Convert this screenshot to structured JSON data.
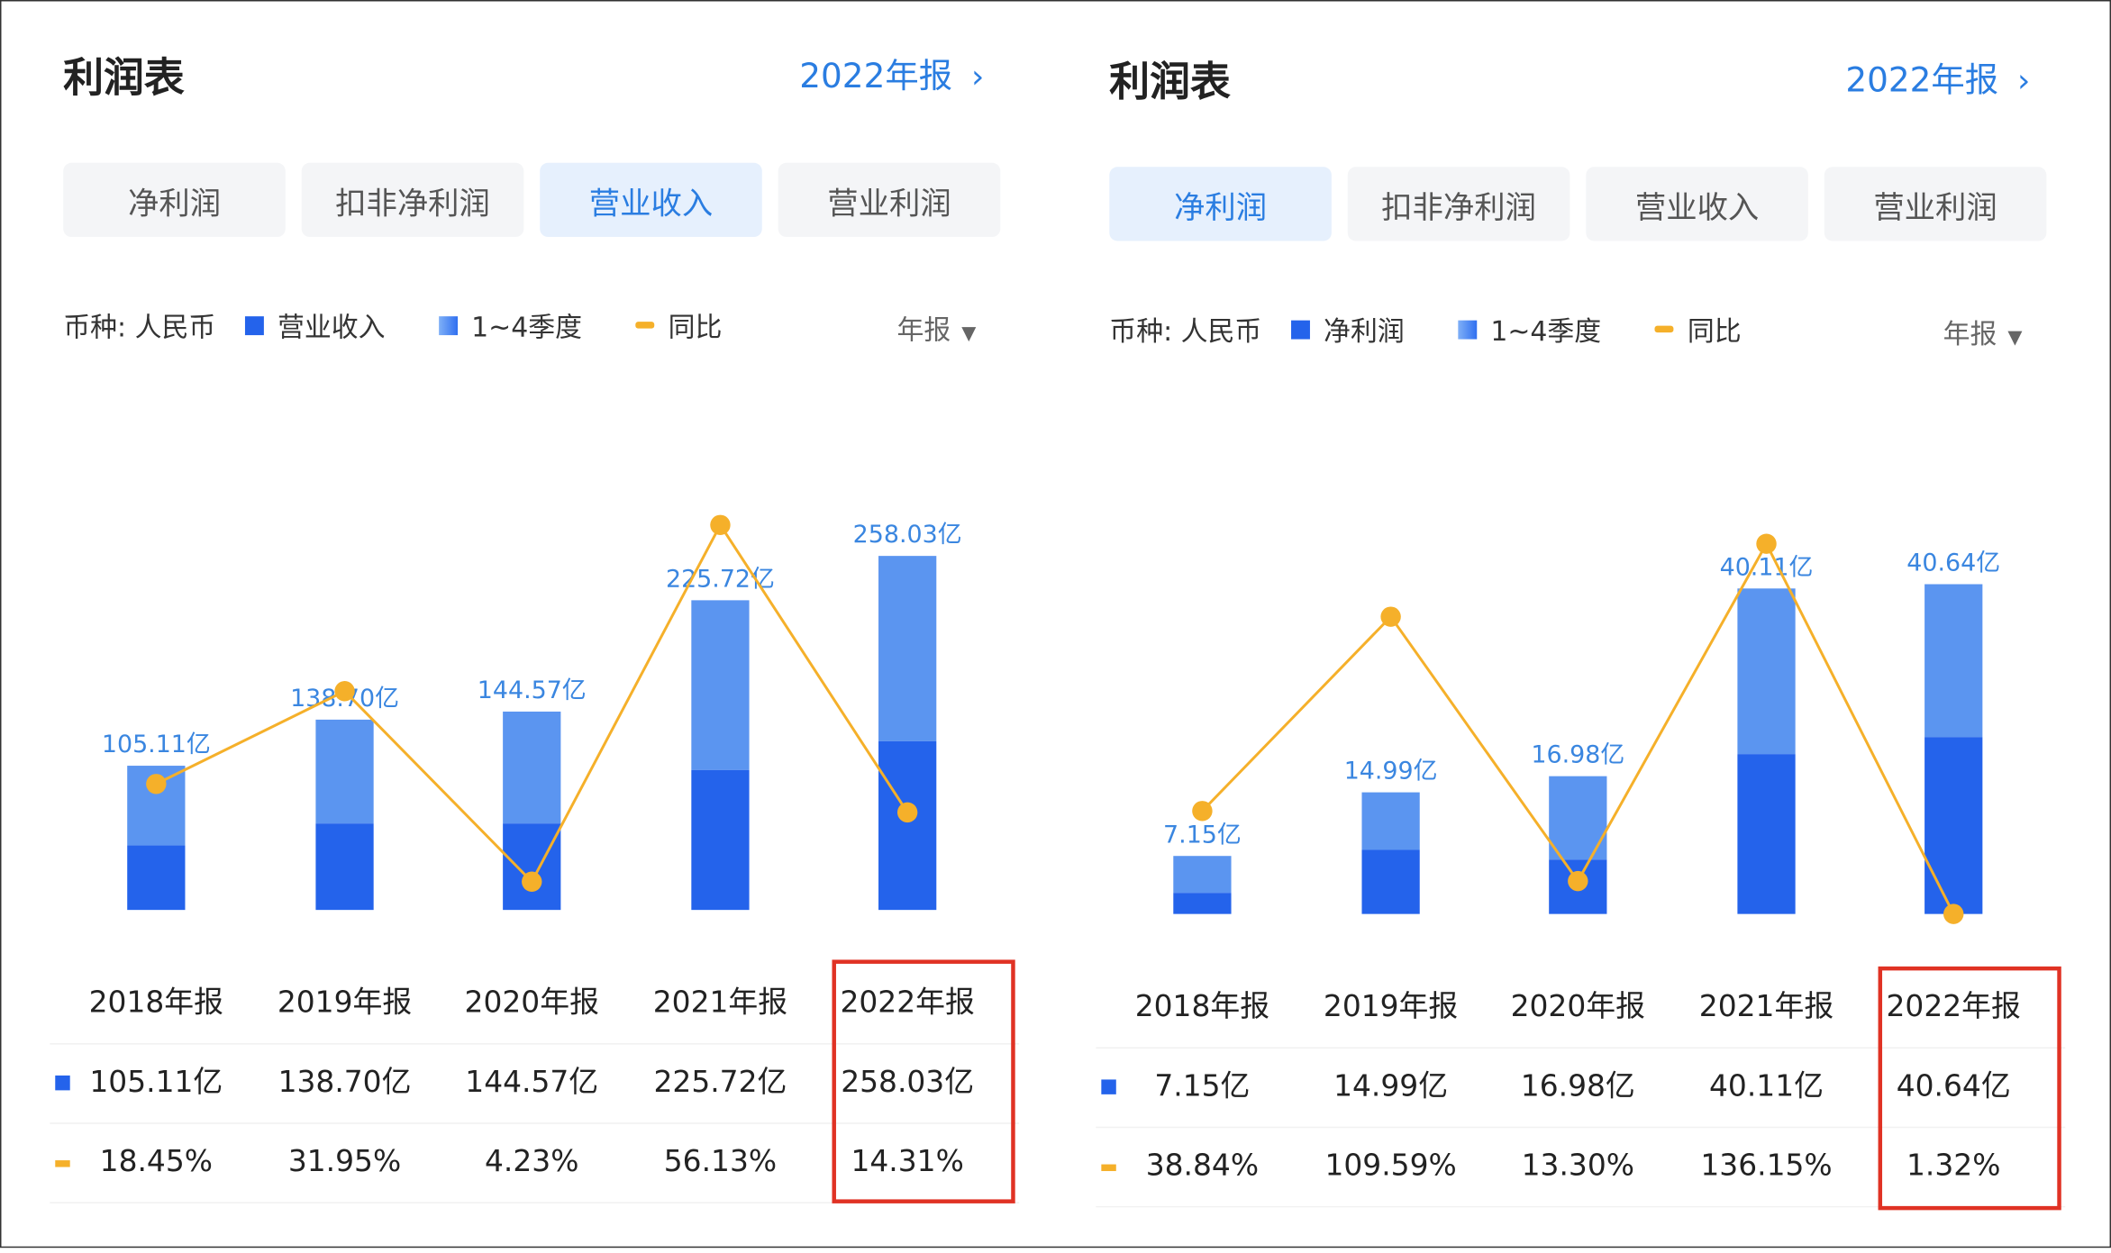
{
  "panels": [
    {
      "title": "利润表",
      "report_link": "2022年报",
      "tabs": [
        "净利润",
        "扣非净利润",
        "营业收入",
        "营业利润"
      ],
      "active_tab": 2,
      "legend": {
        "currency": "币种: 人民币",
        "bar": "营业收入",
        "quarters": "1~4季度",
        "yoy": "同比"
      },
      "period_select": "年报",
      "highlighted_column": 4,
      "chart_data": {
        "type": "bar+line",
        "categories": [
          "2018年报",
          "2019年报",
          "2020年报",
          "2021年报",
          "2022年报"
        ],
        "series": [
          {
            "name": "营业收入",
            "unit": "亿",
            "values": [
              105.11,
              138.7,
              144.57,
              225.72,
              258.03
            ],
            "labels": [
              "105.11亿",
              "138.70亿",
              "144.57亿",
              "225.72亿",
              "258.03亿"
            ],
            "darker_segment_estimate": [
              47,
              63,
              63,
              102,
              123
            ]
          },
          {
            "name": "同比",
            "unit": "%",
            "values": [
              18.45,
              31.95,
              4.23,
              56.13,
              14.31
            ],
            "labels": [
              "18.45%",
              "31.95%",
              "4.23%",
              "56.13%",
              "14.31%"
            ]
          }
        ]
      }
    },
    {
      "title": "利润表",
      "report_link": "2022年报",
      "tabs": [
        "净利润",
        "扣非净利润",
        "营业收入",
        "营业利润"
      ],
      "active_tab": 0,
      "legend": {
        "currency": "币种: 人民币",
        "bar": "净利润",
        "quarters": "1~4季度",
        "yoy": "同比"
      },
      "period_select": "年报",
      "highlighted_column": 4,
      "chart_data": {
        "type": "bar+line",
        "categories": [
          "2018年报",
          "2019年报",
          "2020年报",
          "2021年报",
          "2022年报"
        ],
        "series": [
          {
            "name": "净利润",
            "unit": "亿",
            "values": [
              7.15,
              14.99,
              16.98,
              40.11,
              40.64
            ],
            "labels": [
              "7.15亿",
              "14.99亿",
              "16.98亿",
              "40.11亿",
              "40.64亿"
            ],
            "darker_segment_estimate": [
              2.6,
              7.9,
              6.7,
              19.7,
              21.8
            ]
          },
          {
            "name": "同比",
            "unit": "%",
            "values": [
              38.84,
              109.59,
              13.3,
              136.15,
              1.32
            ],
            "labels": [
              "38.84%",
              "109.59%",
              "13.30%",
              "136.15%",
              "1.32%"
            ]
          }
        ]
      }
    }
  ],
  "colors": {
    "accent": "#2a7de1",
    "bar_dark": "#2463eb",
    "bar_light": "#5b95f0",
    "line": "#f5b02a",
    "highlight": "#e03224"
  }
}
